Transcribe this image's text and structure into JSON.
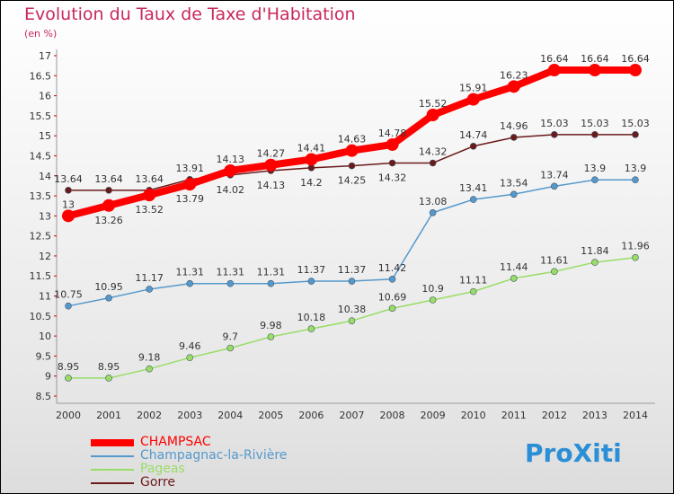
{
  "title": "Evolution du Taux de Taxe d'Habitation",
  "unit": "(en %)",
  "logo": "ProXiti",
  "chart_data": {
    "type": "line",
    "title": "Evolution du Taux de Taxe d'Habitation",
    "ylabel": "(en %)",
    "ylim": [
      8.5,
      17
    ],
    "yticks": [
      "8.5",
      "9",
      "9.5",
      "10",
      "10.5",
      "11",
      "11.5",
      "12",
      "12.5",
      "13",
      "13.5",
      "14",
      "14.5",
      "15",
      "15.5",
      "16",
      "16.5",
      "17"
    ],
    "x": [
      "2000",
      "2001",
      "2002",
      "2003",
      "2004",
      "2005",
      "2006",
      "2007",
      "2008",
      "2009",
      "2010",
      "2011",
      "2012",
      "2013",
      "2014"
    ],
    "legend_position": "bottom-left",
    "series": [
      {
        "name": "CHAMPSAC",
        "color": "#ff0000",
        "values": [
          13,
          13.26,
          13.52,
          13.79,
          14.13,
          14.27,
          14.41,
          14.63,
          14.78,
          15.52,
          15.91,
          16.23,
          16.64,
          16.64,
          16.64
        ]
      },
      {
        "name": "Champagnac-la-Rivière",
        "color": "#5599cc",
        "values": [
          10.75,
          10.95,
          11.17,
          11.31,
          11.31,
          11.31,
          11.37,
          11.37,
          11.42,
          13.08,
          13.41,
          13.54,
          13.74,
          13.9,
          13.9
        ]
      },
      {
        "name": "Pageas",
        "color": "#99dd66",
        "values": [
          8.95,
          8.95,
          9.18,
          9.46,
          9.7,
          9.98,
          10.18,
          10.38,
          10.69,
          10.9,
          11.11,
          11.44,
          11.61,
          11.84,
          11.96
        ]
      },
      {
        "name": "Gorre",
        "color": "#6b1a1a",
        "values": [
          13.64,
          13.64,
          13.64,
          13.91,
          14.02,
          14.13,
          14.2,
          14.25,
          14.32,
          14.32,
          14.74,
          14.96,
          15.03,
          15.03,
          15.03
        ]
      }
    ]
  }
}
